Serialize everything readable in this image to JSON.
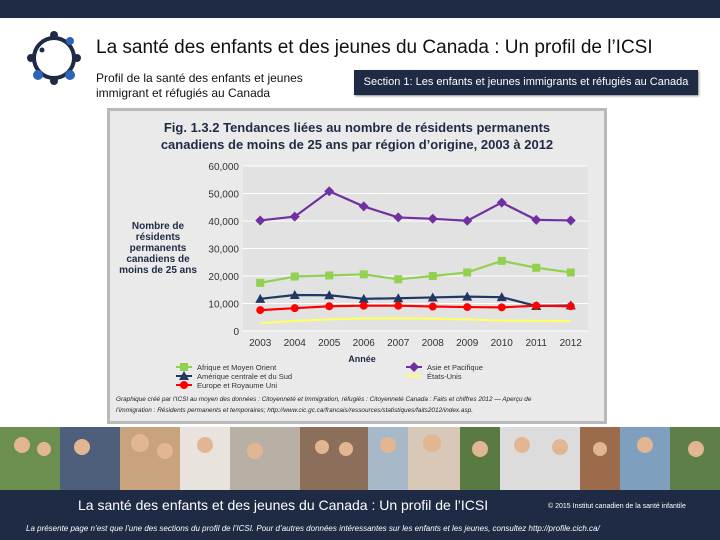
{
  "header": {
    "title": "La santé des enfants et des jeunes du Canada : Un profil de l’ICSI",
    "subtitle": "Profil de la santé des enfants et jeunes immigrant et réfugiés au Canada",
    "section_label": "Section 1: Les enfants et jeunes immigrants et réfugiés au Canada",
    "logo_icon": "children-circle-logo-icon"
  },
  "colors": {
    "navy": "#1f2a44"
  },
  "chart_data": {
    "type": "line",
    "title_line1": "Fig. 1.3.2  Tendances  liées  au nombre de résidents  permanents",
    "title_line2": "canadiens  de moins  de 25 ans par région  d’origine, 2003 à 2012",
    "ylabel": [
      "Nombre de",
      "résidents",
      "permanents",
      "canadiens de",
      "moins de 25 ans"
    ],
    "xlabel": "Année",
    "ylim": [
      0,
      60000
    ],
    "y_ticks": [
      "0",
      "10,000",
      "20,000",
      "30,000",
      "40,000",
      "50,000",
      "60,000"
    ],
    "x": [
      "2003",
      "2004",
      "2005",
      "2006",
      "2007",
      "2008",
      "2009",
      "2010",
      "2011",
      "2012"
    ],
    "grid": true,
    "legend_position": "bottom",
    "series": [
      {
        "name": "Afrique et Moyen Orient",
        "color": "#92d050",
        "marker": "square",
        "values": [
          17500,
          19800,
          20200,
          20600,
          18800,
          20000,
          21300,
          25500,
          23000,
          21300
        ]
      },
      {
        "name": "Asie et Pacifique",
        "color": "#7030a0",
        "marker": "diamond",
        "values": [
          40200,
          41600,
          50800,
          45300,
          41300,
          40800,
          40100,
          46700,
          40400,
          40200
        ]
      },
      {
        "name": "Amérique centrale et du Sud",
        "color": "#1f3864",
        "marker": "triangle",
        "values": [
          11700,
          13100,
          13000,
          11700,
          11900,
          12200,
          12500,
          12300,
          9100,
          9300
        ]
      },
      {
        "name": "États-Unis",
        "color": "#ffff66",
        "marker": "none",
        "values": [
          2800,
          3700,
          4200,
          4600,
          4600,
          4500,
          4200,
          3800,
          3700,
          3600
        ]
      },
      {
        "name": "Europe et Royaume Uni",
        "color": "#ff0000",
        "marker": "circle",
        "values": [
          7600,
          8300,
          9000,
          9200,
          9200,
          8900,
          8700,
          8600,
          9200,
          9000
        ]
      }
    ],
    "source_line1": "Graphique créé par l’ICSI au moyen des données : Citoyenneté et Immigration, réfugiés : Citoyenneté Canada : Faits et chiffres 2012 — Aperçu de",
    "source_line2": "l’immigration : Résidents permanents et temporaires; http://www.cic.gc.ca/francais/ressources/statistiques/faits2012/index.asp."
  },
  "footer": {
    "title": "La santé des enfants et des jeunes du Canada : Un profil de l’ICSI",
    "copyright": "© 2015 Institut canadien de la santé infantile",
    "note": "La présente page n’est que l’une des sections du profil de l’ICSI. Pour d’autres données intéressantes sur les enfants et les jeunes, consultez  http://profile.cich.ca/"
  },
  "photo_strip": {
    "icon": "children-photos-collage"
  }
}
